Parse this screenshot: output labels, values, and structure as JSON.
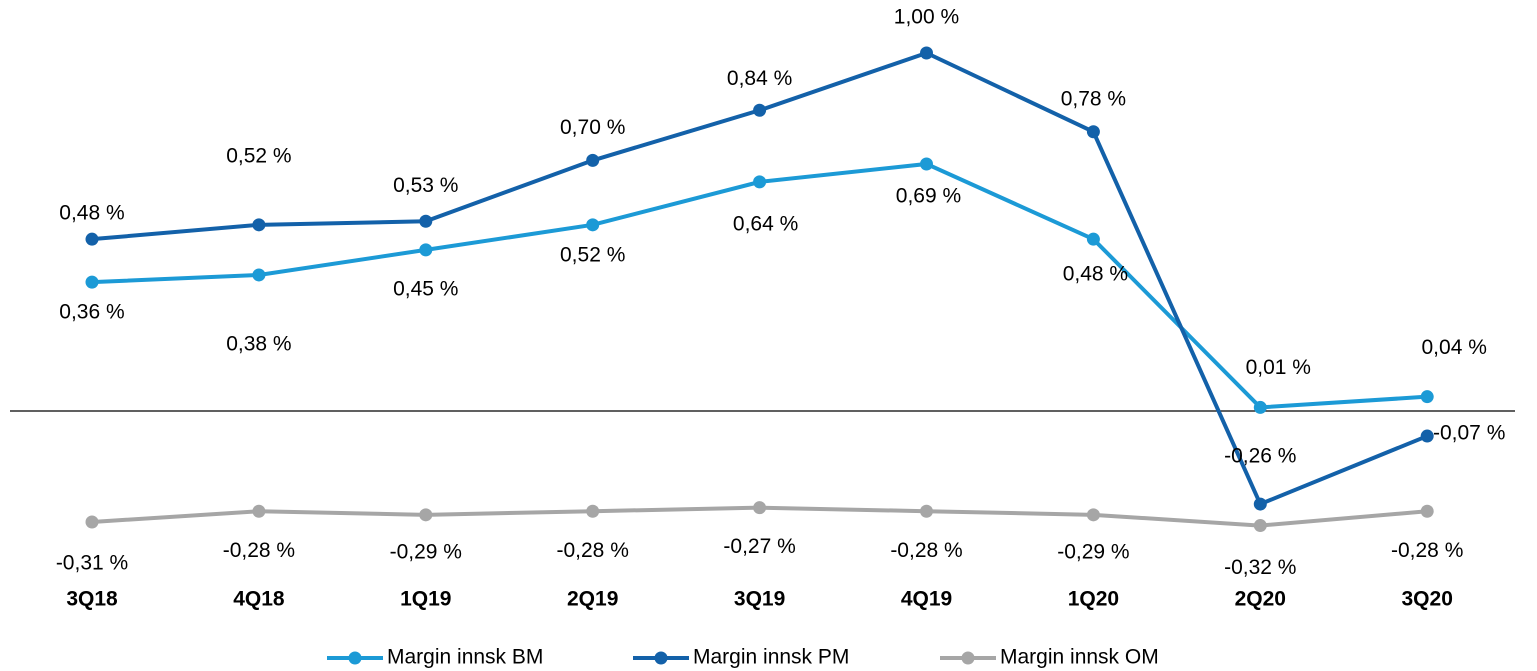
{
  "chart_data": {
    "type": "line",
    "categories": [
      "3Q18",
      "4Q18",
      "1Q19",
      "2Q19",
      "3Q19",
      "4Q19",
      "1Q20",
      "2Q20",
      "3Q20"
    ],
    "series": [
      {
        "name": "Margin innsk BM",
        "color": "#1c9ad6",
        "values": [
          0.36,
          0.38,
          0.45,
          0.52,
          0.64,
          0.69,
          0.48,
          0.01,
          0.04
        ],
        "value_labels": [
          "0,36 %",
          "0,38 %",
          "0,45 %",
          "0,52 %",
          "0,64 %",
          "0,69 %",
          "0,48 %",
          "0,01 %",
          "0,04 %"
        ]
      },
      {
        "name": "Margin innsk PM",
        "color": "#1361a9",
        "values": [
          0.48,
          0.52,
          0.53,
          0.7,
          0.84,
          1.0,
          0.78,
          -0.26,
          -0.07
        ],
        "value_labels": [
          "0,48 %",
          "0,52 %",
          "0,53 %",
          "0,70 %",
          "0,84 %",
          "1,00 %",
          "0,78 %",
          "-0,26 %",
          "-0,07 %"
        ]
      },
      {
        "name": "Margin innsk OM",
        "color": "#a6a6a6",
        "values": [
          -0.31,
          -0.28,
          -0.29,
          -0.28,
          -0.27,
          -0.28,
          -0.29,
          -0.32,
          -0.28
        ],
        "value_labels": [
          "-0,31 %",
          "-0,28 %",
          "-0,29 %",
          "-0,28 %",
          "-0,27 %",
          "-0,28 %",
          "-0,29 %",
          "-0,32 %",
          "-0,28 %"
        ]
      }
    ],
    "legend": "bottom"
  }
}
